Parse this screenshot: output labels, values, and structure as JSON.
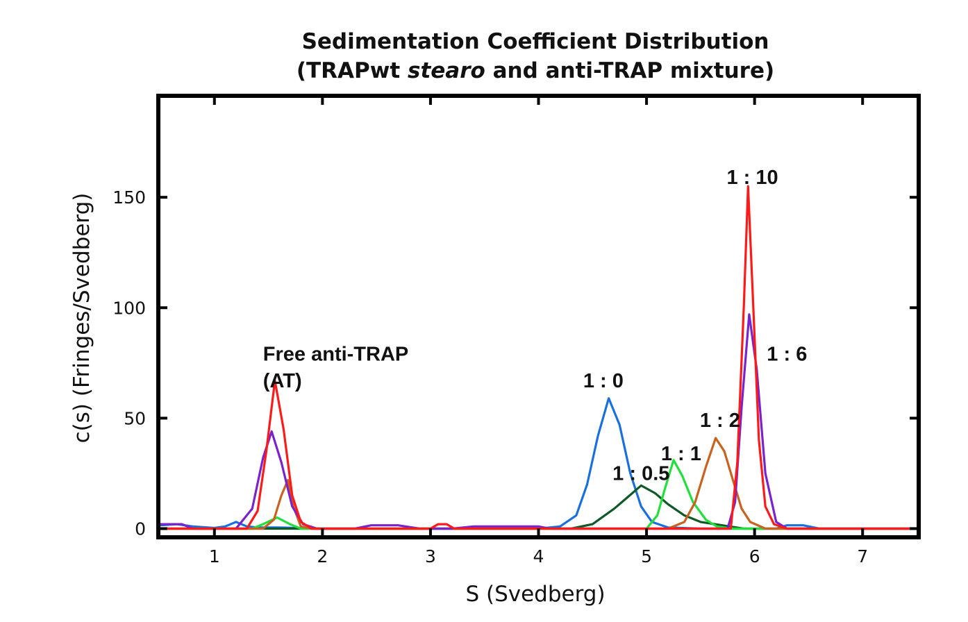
{
  "chart_data": {
    "type": "line",
    "title": "Sedimentation Coefficient Distribution",
    "subtitle": {
      "before": "(TRAPwt ",
      "italic": "stearo",
      "after": " and anti-TRAP mixture)"
    },
    "xlabel": "S (Svedberg)",
    "ylabel": "c(s) (Fringes/Svedberg)",
    "xlim": [
      0.5,
      7.5
    ],
    "ylim": [
      -3,
      195
    ],
    "x_ticks": [
      1,
      2,
      3,
      4,
      5,
      6,
      7
    ],
    "y_ticks": [
      0,
      50,
      100,
      150
    ],
    "grid": false,
    "legend": "none",
    "series": [
      {
        "color": "#1a6fe0",
        "points": [
          [
            0.5,
            1.5
          ],
          [
            0.65,
            2
          ],
          [
            0.8,
            1
          ],
          [
            1.0,
            0.3
          ],
          [
            1.1,
            1
          ],
          [
            1.2,
            3
          ],
          [
            1.3,
            1
          ],
          [
            1.4,
            0.5
          ],
          [
            1.6,
            0.5
          ],
          [
            2.0,
            0
          ],
          [
            4.0,
            0
          ],
          [
            4.2,
            1
          ],
          [
            4.35,
            6
          ],
          [
            4.45,
            20
          ],
          [
            4.55,
            42
          ],
          [
            4.65,
            59
          ],
          [
            4.75,
            47
          ],
          [
            4.85,
            25
          ],
          [
            4.95,
            10
          ],
          [
            5.05,
            3
          ],
          [
            5.2,
            0.5
          ],
          [
            5.5,
            0
          ],
          [
            6.2,
            0
          ],
          [
            6.3,
            1.5
          ],
          [
            6.45,
            1.5
          ],
          [
            6.6,
            0
          ],
          [
            7.5,
            0
          ]
        ]
      },
      {
        "color": "#0d5a25",
        "points": [
          [
            0.5,
            0
          ],
          [
            4.3,
            0
          ],
          [
            4.5,
            2
          ],
          [
            4.7,
            9
          ],
          [
            4.82,
            14
          ],
          [
            4.95,
            19.5
          ],
          [
            5.08,
            16
          ],
          [
            5.2,
            11
          ],
          [
            5.35,
            6
          ],
          [
            5.5,
            3
          ],
          [
            5.7,
            1.5
          ],
          [
            5.9,
            0
          ],
          [
            7.5,
            0
          ]
        ]
      },
      {
        "color": "#22e03a",
        "points": [
          [
            0.5,
            0
          ],
          [
            1.35,
            0
          ],
          [
            1.45,
            2
          ],
          [
            1.58,
            5
          ],
          [
            1.7,
            2
          ],
          [
            1.8,
            0
          ],
          [
            5.0,
            0
          ],
          [
            5.1,
            6
          ],
          [
            5.17,
            18
          ],
          [
            5.25,
            31
          ],
          [
            5.33,
            24
          ],
          [
            5.43,
            12
          ],
          [
            5.55,
            4
          ],
          [
            5.65,
            1
          ],
          [
            5.8,
            0
          ],
          [
            7.5,
            0
          ]
        ]
      },
      {
        "color": "#c8621e",
        "points": [
          [
            0.5,
            0
          ],
          [
            1.45,
            0
          ],
          [
            1.55,
            4
          ],
          [
            1.62,
            15
          ],
          [
            1.68,
            22
          ],
          [
            1.73,
            10
          ],
          [
            1.8,
            1
          ],
          [
            1.9,
            0
          ],
          [
            5.2,
            0
          ],
          [
            5.35,
            3
          ],
          [
            5.45,
            12
          ],
          [
            5.55,
            28
          ],
          [
            5.64,
            41
          ],
          [
            5.72,
            35
          ],
          [
            5.8,
            22
          ],
          [
            5.88,
            9
          ],
          [
            5.96,
            3
          ],
          [
            6.1,
            0
          ],
          [
            7.5,
            0
          ]
        ]
      },
      {
        "color": "#7a22cc",
        "points": [
          [
            0.5,
            2
          ],
          [
            0.7,
            2
          ],
          [
            0.8,
            0
          ],
          [
            1.2,
            0
          ],
          [
            1.35,
            9
          ],
          [
            1.45,
            32
          ],
          [
            1.53,
            44
          ],
          [
            1.62,
            30
          ],
          [
            1.72,
            10
          ],
          [
            1.82,
            2
          ],
          [
            1.95,
            0
          ],
          [
            2.3,
            0
          ],
          [
            2.45,
            1.5
          ],
          [
            2.7,
            1.5
          ],
          [
            2.9,
            0
          ],
          [
            3.2,
            0
          ],
          [
            3.4,
            1
          ],
          [
            4.0,
            1
          ],
          [
            4.1,
            0
          ],
          [
            5.75,
            0
          ],
          [
            5.82,
            12
          ],
          [
            5.88,
            55
          ],
          [
            5.95,
            97
          ],
          [
            6.02,
            72
          ],
          [
            6.1,
            25
          ],
          [
            6.2,
            3
          ],
          [
            6.3,
            0
          ],
          [
            7.5,
            0
          ]
        ]
      },
      {
        "color": "#ff1a1a",
        "points": [
          [
            0.5,
            0
          ],
          [
            1.3,
            0
          ],
          [
            1.4,
            8
          ],
          [
            1.48,
            35
          ],
          [
            1.56,
            67
          ],
          [
            1.64,
            45
          ],
          [
            1.72,
            15
          ],
          [
            1.8,
            3
          ],
          [
            1.9,
            0
          ],
          [
            3.0,
            0
          ],
          [
            3.07,
            2
          ],
          [
            3.15,
            2
          ],
          [
            3.22,
            0
          ],
          [
            5.78,
            0
          ],
          [
            5.84,
            30
          ],
          [
            5.9,
            100
          ],
          [
            5.94,
            155
          ],
          [
            5.98,
            110
          ],
          [
            6.04,
            40
          ],
          [
            6.1,
            10
          ],
          [
            6.18,
            2
          ],
          [
            6.3,
            0
          ],
          [
            7.5,
            0
          ]
        ]
      }
    ],
    "annotations": [
      {
        "text": "Free anti-TRAP",
        "x": 1.45,
        "y": 76
      },
      {
        "text": "(AT)",
        "x": 1.45,
        "y": 64
      },
      {
        "text": "1 : 0",
        "x": 4.6,
        "y": 64
      },
      {
        "text": "1 : 0.5",
        "x": 4.95,
        "y": 22
      },
      {
        "text": "1 : 1",
        "x": 5.32,
        "y": 31
      },
      {
        "text": "1 : 2",
        "x": 5.68,
        "y": 46
      },
      {
        "text": "1 : 10",
        "x": 5.98,
        "y": 156
      },
      {
        "text": "1 : 6",
        "x": 6.3,
        "y": 76
      }
    ]
  }
}
